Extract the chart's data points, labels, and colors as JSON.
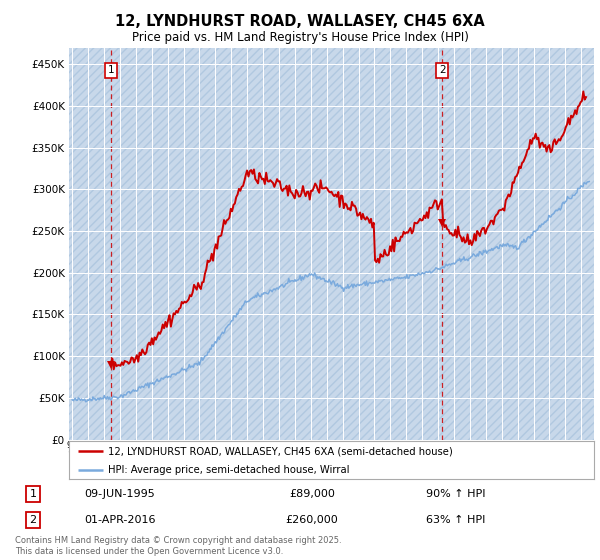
{
  "title": "12, LYNDHURST ROAD, WALLASEY, CH45 6XA",
  "subtitle": "Price paid vs. HM Land Registry's House Price Index (HPI)",
  "ylabel_ticks": [
    "£0",
    "£50K",
    "£100K",
    "£150K",
    "£200K",
    "£250K",
    "£300K",
    "£350K",
    "£400K",
    "£450K"
  ],
  "ytick_values": [
    0,
    50000,
    100000,
    150000,
    200000,
    250000,
    300000,
    350000,
    400000,
    450000
  ],
  "ylim": [
    0,
    470000
  ],
  "xlim_start": 1992.8,
  "xlim_end": 2025.8,
  "hpi_color": "#7aaadd",
  "price_color": "#cc0000",
  "marker1_x": 1995.44,
  "marker1_y": 89000,
  "marker1_label": "1",
  "marker2_x": 2016.25,
  "marker2_y": 260000,
  "marker2_label": "2",
  "legend_line1": "12, LYNDHURST ROAD, WALLASEY, CH45 6XA (semi-detached house)",
  "legend_line2": "HPI: Average price, semi-detached house, Wirral",
  "table_row1_num": "1",
  "table_row1_date": "09-JUN-1995",
  "table_row1_price": "£89,000",
  "table_row1_hpi": "90% ↑ HPI",
  "table_row2_num": "2",
  "table_row2_date": "01-APR-2016",
  "table_row2_price": "£260,000",
  "table_row2_hpi": "63% ↑ HPI",
  "footer": "Contains HM Land Registry data © Crown copyright and database right 2025.\nThis data is licensed under the Open Government Licence v3.0.",
  "plot_bg_color": "#dce8f5",
  "hatch_color": "#c8d8ea",
  "fig_bg_color": "#ffffff"
}
